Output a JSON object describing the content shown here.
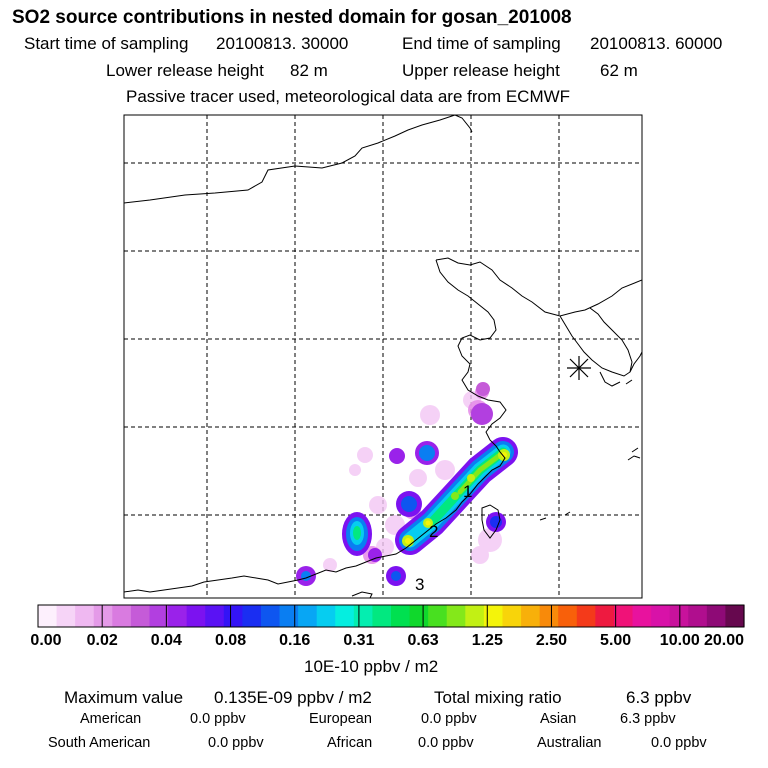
{
  "title": "SO2 source contributions in nested domain for gosan_201008",
  "header": {
    "start_label": "Start time of sampling",
    "start_value": "20100813. 30000",
    "end_label": "End time of sampling",
    "end_value": "20100813. 60000",
    "lower_label": "Lower release height",
    "lower_value": "82 m",
    "upper_label": "Upper release height",
    "upper_value": "62 m",
    "note": "Passive tracer used, meteorological data are from ECMWF"
  },
  "map": {
    "source_labels": [
      "1",
      "2",
      "3"
    ],
    "receptor_marker": "asterisk"
  },
  "colorbar": {
    "colors": [
      "#fdf0fd",
      "#f6d4f7",
      "#efb8f1",
      "#e49ae8",
      "#d97be0",
      "#c55bd8",
      "#b23fe0",
      "#9a22ea",
      "#7c12f0",
      "#5a12f4",
      "#3414f6",
      "#1a2ef2",
      "#0e56f0",
      "#0a7ef2",
      "#08a6f4",
      "#06cdf0",
      "#05eee0",
      "#04eeb0",
      "#02e880",
      "#00e050",
      "#10d82c",
      "#48e020",
      "#84e81a",
      "#c2f014",
      "#f4f40a",
      "#f8d40a",
      "#f8b00a",
      "#f88a0a",
      "#f8600a",
      "#f43a1a",
      "#ee1a40",
      "#f01278",
      "#e8129e",
      "#d812a8",
      "#c8129c",
      "#b00e8e",
      "#8e0a76",
      "#66084e"
    ],
    "tick_labels": [
      "0.00",
      "0.02",
      "0.04",
      "0.08",
      "0.16",
      "0.31",
      "0.63",
      "1.25",
      "2.50",
      "5.00",
      "10.00",
      "20.00"
    ],
    "unit": "10E-10 ppbv / m2"
  },
  "stats": {
    "max_label": "Maximum value",
    "max_value": "0.135E-09 ppbv / m2",
    "total_label": "Total mixing ratio",
    "total_value": "6.3 ppbv",
    "regions": [
      {
        "name": "American",
        "value": "0.0 ppbv"
      },
      {
        "name": "European",
        "value": "0.0 ppbv"
      },
      {
        "name": "Asian",
        "value": "6.3 ppbv"
      },
      {
        "name": "South American",
        "value": "0.0 ppbv"
      },
      {
        "name": "African",
        "value": "0.0 ppbv"
      },
      {
        "name": "Australian",
        "value": "0.0 ppbv"
      }
    ]
  }
}
